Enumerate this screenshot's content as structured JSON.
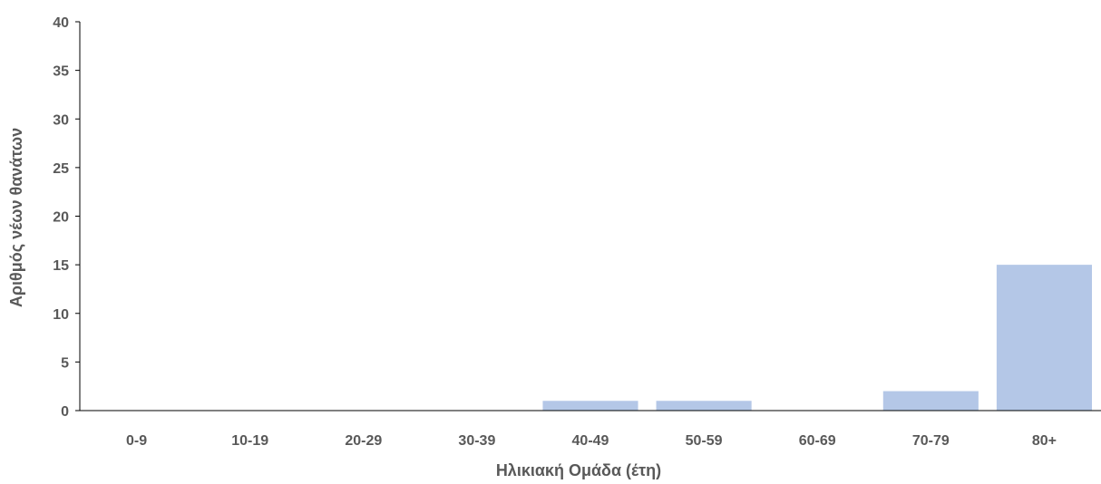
{
  "chart_data": {
    "type": "bar",
    "title": "",
    "xlabel": "Ηλικιακή Ομάδα (έτη)",
    "ylabel": "Αριθμός νέων θανάτων",
    "categories": [
      "0-9",
      "10-19",
      "20-29",
      "30-39",
      "40-49",
      "50-59",
      "60-69",
      "70-79",
      "80+"
    ],
    "values": [
      0,
      0,
      0,
      0,
      1,
      1,
      0,
      2,
      15
    ],
    "ylim": [
      0,
      40
    ],
    "yticks": [
      "0",
      "5",
      "10",
      "15",
      "20",
      "25",
      "30",
      "35",
      "40"
    ],
    "grid": false,
    "legend": "none",
    "bar_color": "#b4c7e7",
    "axis_color": "#000000",
    "text_color": "#595959"
  }
}
